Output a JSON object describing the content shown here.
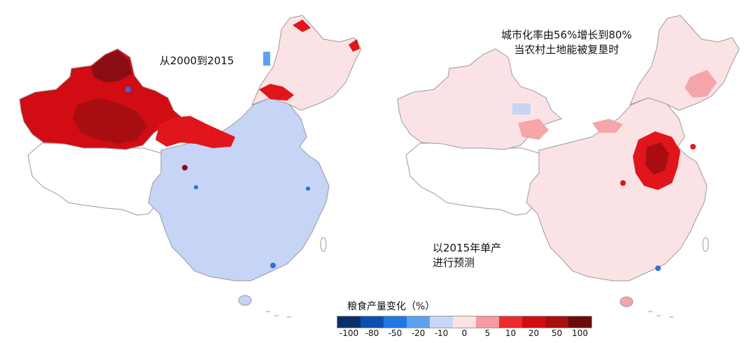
{
  "maps": {
    "left": {
      "annotation": "从2000到2015"
    },
    "right": {
      "annotation_line1": "城市化率由56%增长到80%",
      "annotation_line2": "当农村土地能被复垦时",
      "annotation_line3": "以2015年单产",
      "annotation_line4": "进行预测"
    }
  },
  "legend": {
    "title": "粮食产量变化（%）",
    "colors": [
      "#08306b",
      "#0b4fb0",
      "#1f78e6",
      "#5aa2f0",
      "#c7d7f7",
      "#fde2e4",
      "#f59aa0",
      "#ec2a2f",
      "#d10c12",
      "#a80d12",
      "#6b0a0b"
    ],
    "ticks": [
      "-100",
      "-80",
      "-50",
      "-20",
      "-10",
      "0",
      "5",
      "10",
      "20",
      "50",
      "100"
    ]
  },
  "palette": {
    "dark_red": "#8b0d14",
    "red": "#e0161c",
    "light_red": "#f6a5a9",
    "pale_pink": "#fbe3e5",
    "pale_blue": "#c6d4f5",
    "blue": "#2f6fde",
    "outline": "#9a9a9a"
  }
}
